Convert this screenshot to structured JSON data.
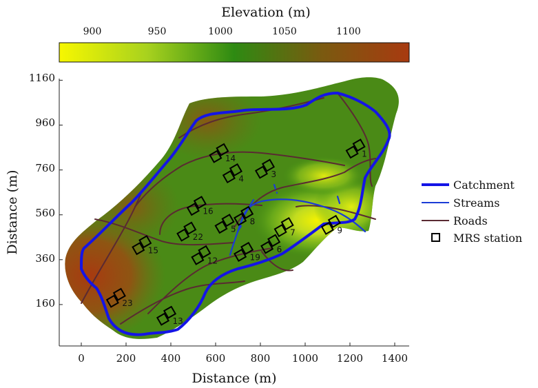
{
  "figure": {
    "colorbar_title": "Elevation (m)",
    "colorbar_ticks": [
      "900",
      "950",
      "1000",
      "1050",
      "1100"
    ],
    "colormap": [
      "#f7f700",
      "#a8d21e",
      "#2e8a12",
      "#7a5a10",
      "#a83a10"
    ],
    "xlabel": "Distance (m)",
    "ylabel": "Distance (m)",
    "x_ticks": [
      "0",
      "200",
      "400",
      "600",
      "800",
      "1000",
      "1200",
      "1400"
    ],
    "y_ticks": [
      "160",
      "360",
      "560",
      "760",
      "960",
      "1160"
    ],
    "x_range": [
      -100,
      1460
    ],
    "y_range": [
      -20,
      1160
    ]
  },
  "legend": {
    "catchment": "Catchment",
    "streams": "Streams",
    "roads": "Roads",
    "stations": "MRS station"
  },
  "colors": {
    "catchment": "#1414e6",
    "stream": "#1a3cd6",
    "road": "#5a2a32",
    "station": "#000000"
  },
  "stations": [
    {
      "id": "1",
      "label": "1",
      "x": 1225,
      "y": 855
    },
    {
      "id": "3",
      "label": "3",
      "x": 820,
      "y": 765
    },
    {
      "id": "4",
      "label": "4",
      "x": 675,
      "y": 745
    },
    {
      "id": "5",
      "label": "5",
      "x": 640,
      "y": 520
    },
    {
      "id": "6",
      "label": "6",
      "x": 845,
      "y": 430
    },
    {
      "id": "7",
      "label": "7",
      "x": 905,
      "y": 505
    },
    {
      "id": "8",
      "label": "8",
      "x": 725,
      "y": 555
    },
    {
      "id": "9",
      "label": "9",
      "x": 1115,
      "y": 515
    },
    {
      "id": "12",
      "label": "12",
      "x": 535,
      "y": 380
    },
    {
      "id": "13",
      "label": "13",
      "x": 380,
      "y": 110
    },
    {
      "id": "14",
      "label": "14",
      "x": 615,
      "y": 835
    },
    {
      "id": "15",
      "label": "15",
      "x": 270,
      "y": 425
    },
    {
      "id": "16",
      "label": "16",
      "x": 515,
      "y": 600
    },
    {
      "id": "19",
      "label": "19",
      "x": 725,
      "y": 395
    },
    {
      "id": "22",
      "label": "22",
      "x": 470,
      "y": 485
    },
    {
      "id": "23",
      "label": "23",
      "x": 155,
      "y": 190
    }
  ]
}
